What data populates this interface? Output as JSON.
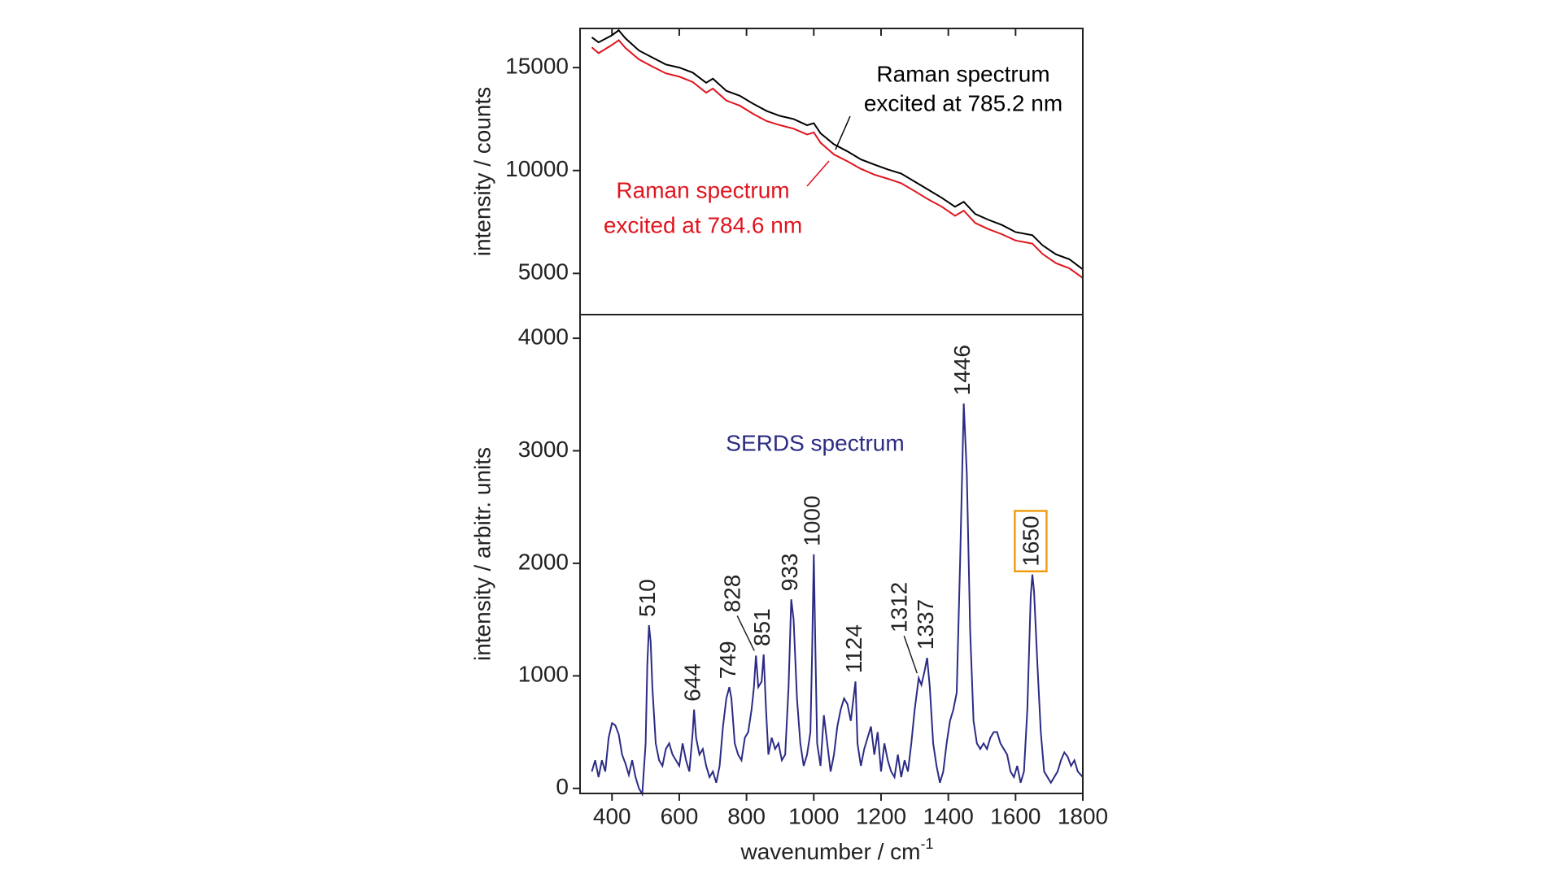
{
  "chart_data": [
    {
      "type": "line",
      "ylabel": "intensity / counts",
      "x": [
        340,
        360,
        400,
        420,
        440,
        480,
        520,
        560,
        600,
        640,
        680,
        700,
        740,
        780,
        820,
        860,
        900,
        940,
        980,
        1000,
        1020,
        1060,
        1100,
        1140,
        1180,
        1220,
        1260,
        1300,
        1340,
        1380,
        1420,
        1446,
        1480,
        1520,
        1560,
        1600,
        1650,
        1680,
        1720,
        1760,
        1800
      ],
      "xlim": [
        305,
        1800
      ],
      "xticks": [
        400,
        600,
        800,
        1000,
        1200,
        1400,
        1600,
        1800
      ],
      "ylim": [
        3000,
        16900
      ],
      "yticks": [
        5000,
        10000,
        15000
      ],
      "series": [
        {
          "name": [
            "Raman spectrum",
            "excited at 785.2 nm"
          ],
          "color": "#000000",
          "values": [
            16470,
            16225,
            16570,
            16810,
            16420,
            15830,
            15490,
            15150,
            15000,
            14755,
            14260,
            14460,
            13870,
            13630,
            13240,
            12890,
            12650,
            12500,
            12200,
            12300,
            11810,
            11270,
            10930,
            10540,
            10290,
            10050,
            9850,
            9460,
            9070,
            8680,
            8240,
            8480,
            7890,
            7600,
            7350,
            7010,
            6860,
            6370,
            5930,
            5690,
            5200
          ]
        },
        {
          "name": [
            "Raman spectrum",
            "excited at 784.6 nm"
          ],
          "color": "#e0141e",
          "values": [
            15980,
            15700,
            16100,
            16330,
            15950,
            15400,
            15050,
            14720,
            14560,
            14300,
            13780,
            13980,
            13400,
            13150,
            12750,
            12400,
            12200,
            12030,
            11750,
            11850,
            11350,
            10780,
            10450,
            10080,
            9800,
            9600,
            9380,
            9000,
            8600,
            8250,
            7800,
            8050,
            7450,
            7150,
            6900,
            6600,
            6450,
            5950,
            5500,
            5250,
            4780
          ]
        }
      ]
    },
    {
      "type": "line",
      "ylabel": "intensity / arbitr. units",
      "xlabel": {
        "text": "wavenumber / cm",
        "superscript": "-1"
      },
      "x": [
        340,
        350,
        360,
        370,
        380,
        390,
        400,
        410,
        420,
        430,
        440,
        450,
        460,
        470,
        480,
        490,
        500,
        505,
        510,
        515,
        520,
        530,
        540,
        550,
        560,
        570,
        580,
        590,
        600,
        610,
        620,
        630,
        640,
        644,
        650,
        660,
        670,
        680,
        690,
        700,
        710,
        720,
        730,
        740,
        749,
        755,
        765,
        775,
        785,
        795,
        805,
        815,
        822,
        828,
        835,
        845,
        851,
        858,
        865,
        875,
        885,
        895,
        905,
        915,
        925,
        933,
        940,
        950,
        960,
        970,
        980,
        990,
        995,
        1000,
        1005,
        1010,
        1020,
        1030,
        1040,
        1050,
        1060,
        1070,
        1080,
        1090,
        1100,
        1110,
        1124,
        1130,
        1140,
        1150,
        1160,
        1170,
        1180,
        1190,
        1200,
        1210,
        1220,
        1230,
        1240,
        1250,
        1260,
        1270,
        1280,
        1290,
        1300,
        1312,
        1320,
        1330,
        1337,
        1345,
        1355,
        1365,
        1375,
        1385,
        1395,
        1405,
        1415,
        1425,
        1435,
        1446,
        1455,
        1465,
        1475,
        1485,
        1495,
        1505,
        1515,
        1525,
        1535,
        1545,
        1555,
        1565,
        1575,
        1585,
        1595,
        1605,
        1615,
        1625,
        1635,
        1645,
        1650,
        1655,
        1665,
        1675,
        1685,
        1695,
        1705,
        1715,
        1725,
        1735,
        1745,
        1755,
        1765,
        1775,
        1785,
        1800
      ],
      "xlim": [
        305,
        1800
      ],
      "xticks": [
        400,
        600,
        800,
        1000,
        1200,
        1400,
        1600,
        1800
      ],
      "ylim": [
        -45,
        4210
      ],
      "yticks": [
        0,
        1000,
        2000,
        3000,
        4000
      ],
      "series": [
        {
          "name": "SERDS spectrum",
          "color": "#2b2b85",
          "values": [
            150,
            250,
            100,
            250,
            150,
            450,
            580,
            560,
            480,
            300,
            220,
            120,
            250,
            100,
            0,
            -50,
            400,
            1100,
            1450,
            1300,
            900,
            400,
            250,
            200,
            350,
            400,
            300,
            250,
            200,
            400,
            250,
            150,
            500,
            700,
            450,
            300,
            350,
            200,
            100,
            150,
            50,
            200,
            550,
            800,
            900,
            800,
            400,
            300,
            250,
            450,
            500,
            700,
            900,
            1180,
            900,
            950,
            1190,
            700,
            300,
            450,
            350,
            400,
            250,
            300,
            900,
            1680,
            1500,
            800,
            400,
            200,
            300,
            500,
            1200,
            2080,
            1200,
            400,
            200,
            650,
            400,
            150,
            300,
            550,
            700,
            800,
            750,
            600,
            950,
            400,
            200,
            350,
            450,
            550,
            300,
            500,
            150,
            400,
            250,
            150,
            100,
            300,
            100,
            250,
            150,
            400,
            700,
            980,
            920,
            1050,
            1160,
            900,
            400,
            200,
            50,
            150,
            400,
            600,
            700,
            850,
            2000,
            3420,
            2800,
            1400,
            600,
            400,
            350,
            400,
            350,
            450,
            500,
            500,
            400,
            350,
            300,
            150,
            100,
            200,
            50,
            150,
            700,
            1700,
            1900,
            1750,
            1100,
            500,
            150,
            100,
            50,
            100,
            150,
            250,
            320,
            280,
            200,
            250,
            150,
            100
          ]
        }
      ],
      "annotations": [
        {
          "text": "510",
          "x": 510
        },
        {
          "text": "644",
          "x": 644
        },
        {
          "text": "749",
          "x": 749
        },
        {
          "text": "828",
          "x": 828
        },
        {
          "text": "851",
          "x": 851
        },
        {
          "text": "933",
          "x": 933
        },
        {
          "text": "1000",
          "x": 1000
        },
        {
          "text": "1124",
          "x": 1124
        },
        {
          "text": "1312",
          "x": 1312
        },
        {
          "text": "1337",
          "x": 1337
        },
        {
          "text": "1446",
          "x": 1446
        },
        {
          "text": "1650",
          "x": 1650,
          "box_color": "#f39c12"
        }
      ]
    }
  ]
}
